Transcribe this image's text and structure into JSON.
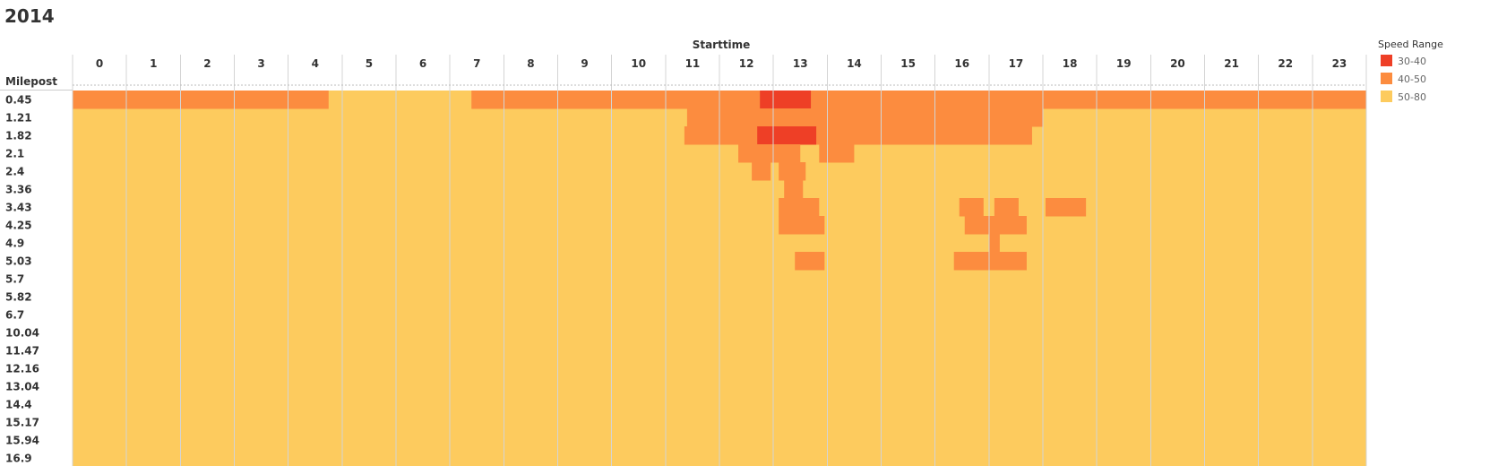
{
  "chart_data": {
    "type": "heatmap",
    "title": "2014",
    "xlabel": "Starttime",
    "ylabel": "Milepost",
    "x": [
      0,
      1,
      2,
      3,
      4,
      5,
      6,
      7,
      8,
      9,
      10,
      11,
      12,
      13,
      14,
      15,
      16,
      17,
      18,
      19,
      20,
      21,
      22,
      23
    ],
    "y": [
      "0.45",
      "1.21",
      "1.82",
      "2.1",
      "2.4",
      "3.36",
      "3.43",
      "4.25",
      "4.9",
      "5.03",
      "5.7",
      "5.82",
      "6.7",
      "10.04",
      "11.47",
      "12.16",
      "13.04",
      "14.4",
      "15.17",
      "15.94",
      "16.9"
    ],
    "default_range": "50-80",
    "legend": {
      "title": "Speed Range",
      "placement": "right",
      "items": [
        {
          "label": "30-40",
          "color": "#ee3f26"
        },
        {
          "label": "40-50",
          "color": "#fc8c3f"
        },
        {
          "label": "50-80",
          "color": "#fdcb5e"
        }
      ]
    },
    "cells": [
      {
        "milepost": "0.45",
        "from": 0,
        "to": 4.75,
        "range": "40-50"
      },
      {
        "milepost": "0.45",
        "from": 7.4,
        "to": 12.75,
        "range": "40-50"
      },
      {
        "milepost": "0.45",
        "from": 12.75,
        "to": 13.7,
        "range": "30-40"
      },
      {
        "milepost": "0.45",
        "from": 13.7,
        "to": 24,
        "range": "40-50"
      },
      {
        "milepost": "1.21",
        "from": 11.4,
        "to": 18.0,
        "range": "40-50"
      },
      {
        "milepost": "1.82",
        "from": 11.35,
        "to": 12.7,
        "range": "40-50"
      },
      {
        "milepost": "1.82",
        "from": 12.7,
        "to": 13.8,
        "range": "30-40"
      },
      {
        "milepost": "1.82",
        "from": 13.8,
        "to": 17.8,
        "range": "40-50"
      },
      {
        "milepost": "2.1",
        "from": 12.35,
        "to": 13.5,
        "range": "40-50"
      },
      {
        "milepost": "2.1",
        "from": 13.85,
        "to": 14.5,
        "range": "40-50"
      },
      {
        "milepost": "2.4",
        "from": 12.6,
        "to": 12.95,
        "range": "40-50"
      },
      {
        "milepost": "2.4",
        "from": 13.1,
        "to": 13.6,
        "range": "40-50"
      },
      {
        "milepost": "3.36",
        "from": 13.2,
        "to": 13.55,
        "range": "40-50"
      },
      {
        "milepost": "3.43",
        "from": 13.1,
        "to": 13.85,
        "range": "40-50"
      },
      {
        "milepost": "3.43",
        "from": 16.45,
        "to": 16.9,
        "range": "40-50"
      },
      {
        "milepost": "3.43",
        "from": 17.1,
        "to": 17.55,
        "range": "40-50"
      },
      {
        "milepost": "3.43",
        "from": 18.05,
        "to": 18.8,
        "range": "40-50"
      },
      {
        "milepost": "4.25",
        "from": 13.1,
        "to": 13.95,
        "range": "40-50"
      },
      {
        "milepost": "4.25",
        "from": 16.55,
        "to": 17.7,
        "range": "40-50"
      },
      {
        "milepost": "4.9",
        "from": 17.0,
        "to": 17.2,
        "range": "40-50"
      },
      {
        "milepost": "5.03",
        "from": 13.4,
        "to": 13.95,
        "range": "40-50"
      },
      {
        "milepost": "5.03",
        "from": 16.35,
        "to": 17.7,
        "range": "40-50"
      }
    ]
  }
}
